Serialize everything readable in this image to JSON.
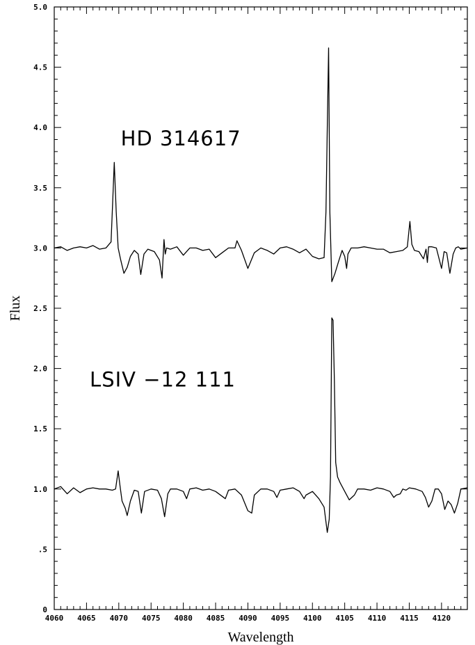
{
  "chart_data": {
    "type": "line",
    "title": "",
    "xlabel": "Wavelength",
    "ylabel": "Flux",
    "xlim": [
      4060,
      4124
    ],
    "ylim": [
      0,
      5.0
    ],
    "x_ticks": [
      4060,
      4065,
      4070,
      4075,
      4080,
      4085,
      4090,
      4095,
      4100,
      4105,
      4110,
      4115,
      4120
    ],
    "y_ticks": [
      {
        "value": 0,
        "label": "0"
      },
      {
        "value": 0.5,
        "label": ".5"
      },
      {
        "value": 1.0,
        "label": "1.0"
      },
      {
        "value": 1.5,
        "label": "1.5"
      },
      {
        "value": 2.0,
        "label": "2.0"
      },
      {
        "value": 2.5,
        "label": "2.5"
      },
      {
        "value": 3.0,
        "label": "3.0"
      },
      {
        "value": 3.5,
        "label": "3.5"
      },
      {
        "value": 4.0,
        "label": "4.0"
      },
      {
        "value": 4.5,
        "label": "4.5"
      },
      {
        "value": 5.0,
        "label": "5.0"
      }
    ],
    "grid": false,
    "legend": "none",
    "annotations": [
      {
        "text": "HD 314617",
        "x": 4070.3,
        "y": 3.85
      },
      {
        "text": "LSIV −12 111",
        "x": 4065.5,
        "y": 1.85
      }
    ],
    "series": [
      {
        "x": [
          4060.0,
          4061.0,
          4062.0,
          4063.0,
          4064.0,
          4065.0,
          4066.0,
          4067.0,
          4068.0,
          4068.8,
          4069.1,
          4069.3,
          4069.6,
          4069.9,
          4070.3,
          4070.8,
          4071.3,
          4071.8,
          4072.4,
          4073.0,
          4073.4,
          4073.9,
          4074.5,
          4075.5,
          4076.3,
          4076.7,
          4077.0,
          4077.2,
          4077.4,
          4078.0,
          4079.0,
          4080.0,
          4081.0,
          4082.0,
          4083.0,
          4084.0,
          4085.0,
          4086.0,
          4087.0,
          4088.0,
          4088.3,
          4089.0,
          4090.0,
          4091.0,
          4092.0,
          4093.0,
          4094.0,
          4095.0,
          4096.0,
          4097.0,
          4098.0,
          4099.0,
          4100.0,
          4101.0,
          4101.8,
          4102.1,
          4102.3,
          4102.5,
          4102.7,
          4103.0,
          4103.5,
          4104.0,
          4104.6,
          4105.0,
          4105.3,
          4105.5,
          4106.0,
          4107.0,
          4108.0,
          4109.0,
          4110.0,
          4111.0,
          4112.0,
          4113.0,
          4114.0,
          4114.7,
          4115.1,
          4115.4,
          4115.8,
          4116.5,
          4117.2,
          4117.6,
          4117.8,
          4118.0,
          4118.5,
          4119.2,
          4120.0,
          4120.4,
          4120.8,
          4121.3,
          4121.8,
          4122.2,
          4122.6,
          4123.0,
          4124.0
        ],
        "values": [
          3.0,
          3.01,
          2.98,
          3.0,
          3.01,
          3.0,
          3.02,
          2.99,
          3.0,
          3.05,
          3.45,
          3.71,
          3.3,
          3.0,
          2.9,
          2.79,
          2.84,
          2.93,
          2.98,
          2.95,
          2.78,
          2.95,
          2.99,
          2.97,
          2.9,
          2.75,
          3.07,
          2.95,
          3.0,
          2.99,
          3.01,
          2.94,
          3.0,
          3.0,
          2.98,
          2.99,
          2.92,
          2.96,
          3.0,
          3.0,
          3.06,
          2.98,
          2.83,
          2.96,
          3.0,
          2.98,
          2.95,
          3.0,
          3.01,
          2.99,
          2.96,
          2.99,
          2.93,
          2.91,
          2.92,
          3.3,
          4.0,
          4.66,
          3.3,
          2.72,
          2.79,
          2.88,
          2.98,
          2.93,
          2.83,
          2.95,
          3.0,
          3.0,
          3.01,
          3.0,
          2.99,
          2.99,
          2.96,
          2.97,
          2.98,
          3.01,
          3.22,
          3.03,
          2.98,
          2.97,
          2.91,
          2.99,
          2.88,
          3.01,
          3.01,
          3.0,
          2.83,
          2.97,
          2.96,
          2.79,
          2.95,
          3.0,
          3.01,
          2.99,
          3.0
        ]
      },
      {
        "x": [
          4060.0,
          4061.0,
          4062.0,
          4063.0,
          4064.0,
          4065.0,
          4066.0,
          4067.0,
          4068.0,
          4069.0,
          4069.5,
          4069.9,
          4070.2,
          4070.5,
          4071.0,
          4071.3,
          4071.8,
          4072.4,
          4073.0,
          4073.5,
          4074.0,
          4075.0,
          4076.0,
          4076.6,
          4077.1,
          4077.6,
          4078.0,
          4079.0,
          4080.0,
          4080.5,
          4081.0,
          4082.0,
          4083.0,
          4084.0,
          4085.0,
          4086.0,
          4086.5,
          4087.0,
          4088.0,
          4089.0,
          4090.0,
          4090.6,
          4091.0,
          4092.0,
          4093.0,
          4094.0,
          4094.5,
          4095.0,
          4096.0,
          4097.0,
          4098.0,
          4098.7,
          4099.0,
          4100.0,
          4101.0,
          4101.8,
          4102.3,
          4102.6,
          4102.8,
          4103.0,
          4103.2,
          4103.4,
          4103.6,
          4103.9,
          4104.3,
          4105.0,
          4105.7,
          4106.5,
          4107.0,
          4108.0,
          4109.0,
          4110.0,
          4111.0,
          4112.0,
          4112.6,
          4113.0,
          4113.6,
          4114.0,
          4114.5,
          4115.0,
          4116.0,
          4117.0,
          4117.5,
          4118.0,
          4118.5,
          4119.0,
          4119.5,
          4120.0,
          4120.5,
          4121.0,
          4121.5,
          4122.0,
          4122.5,
          4123.0,
          4124.0
        ],
        "values": [
          1.0,
          1.02,
          0.96,
          1.01,
          0.97,
          1.0,
          1.01,
          1.0,
          1.0,
          0.99,
          1.0,
          1.15,
          1.02,
          0.9,
          0.84,
          0.78,
          0.9,
          0.99,
          0.98,
          0.8,
          0.98,
          1.0,
          0.99,
          0.92,
          0.77,
          0.96,
          1.0,
          1.0,
          0.98,
          0.92,
          1.0,
          1.01,
          0.99,
          1.0,
          0.98,
          0.94,
          0.92,
          0.99,
          1.0,
          0.95,
          0.82,
          0.8,
          0.95,
          1.0,
          1.0,
          0.98,
          0.93,
          0.99,
          1.0,
          1.01,
          0.98,
          0.92,
          0.95,
          0.98,
          0.92,
          0.85,
          0.64,
          0.75,
          1.1,
          2.42,
          2.4,
          1.9,
          1.22,
          1.1,
          1.05,
          0.98,
          0.91,
          0.95,
          1.0,
          1.0,
          0.99,
          1.01,
          1.0,
          0.98,
          0.93,
          0.95,
          0.96,
          1.0,
          0.99,
          1.01,
          1.0,
          0.98,
          0.93,
          0.85,
          0.9,
          1.0,
          1.0,
          0.96,
          0.83,
          0.9,
          0.87,
          0.8,
          0.88,
          1.0,
          1.01
        ]
      }
    ]
  }
}
